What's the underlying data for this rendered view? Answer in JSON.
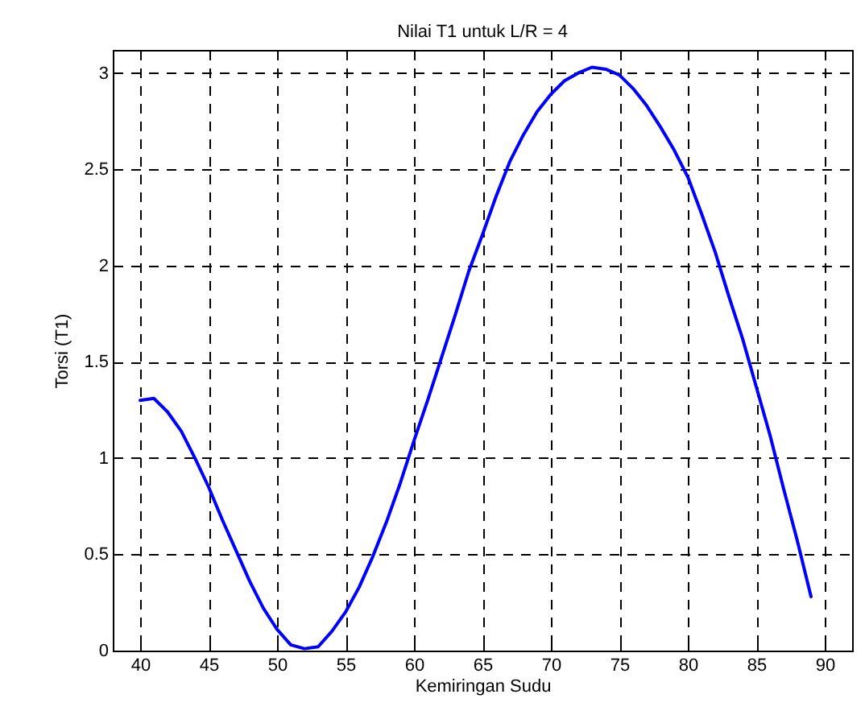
{
  "chart_data": {
    "type": "line",
    "title": "Nilai T1 untuk L/R = 4",
    "xlabel": "Kemiringan Sudu",
    "ylabel": "Torsi (T1)",
    "x": [
      40,
      41,
      42,
      43,
      44,
      45,
      46,
      47,
      48,
      49,
      50,
      51,
      52,
      53,
      54,
      55,
      56,
      57,
      58,
      59,
      60,
      61,
      62,
      63,
      64,
      65,
      66,
      67,
      68,
      69,
      70,
      71,
      72,
      73,
      74,
      75,
      76,
      77,
      78,
      79,
      80,
      81,
      82,
      83,
      84,
      85,
      86,
      87,
      88,
      89
    ],
    "series": [
      {
        "color": "#0000ff",
        "values": [
          1.3,
          1.31,
          1.24,
          1.14,
          1.0,
          0.85,
          0.68,
          0.52,
          0.36,
          0.22,
          0.11,
          0.03,
          0.01,
          0.02,
          0.1,
          0.2,
          0.33,
          0.49,
          0.67,
          0.87,
          1.09,
          1.3,
          1.52,
          1.74,
          1.97,
          2.16,
          2.36,
          2.54,
          2.68,
          2.8,
          2.89,
          2.96,
          3.0,
          3.03,
          3.02,
          2.99,
          2.92,
          2.83,
          2.72,
          2.6,
          2.46,
          2.27,
          2.07,
          1.84,
          1.62,
          1.37,
          1.12,
          0.84,
          0.57,
          0.28
        ]
      }
    ],
    "xlim": [
      38,
      92
    ],
    "xticks": [
      40,
      45,
      50,
      55,
      60,
      65,
      70,
      75,
      80,
      85,
      90
    ],
    "ylim": [
      0,
      3.12
    ],
    "yticks": [
      {
        "value": 0,
        "label": "0"
      },
      0.5,
      {
        "value": 1,
        "label": "1"
      },
      1.5,
      {
        "value": 2,
        "label": "2"
      },
      2.5,
      {
        "value": 3,
        "label": "3"
      }
    ],
    "grid": true,
    "marker": "none",
    "line_style": "solid",
    "legend": false
  }
}
